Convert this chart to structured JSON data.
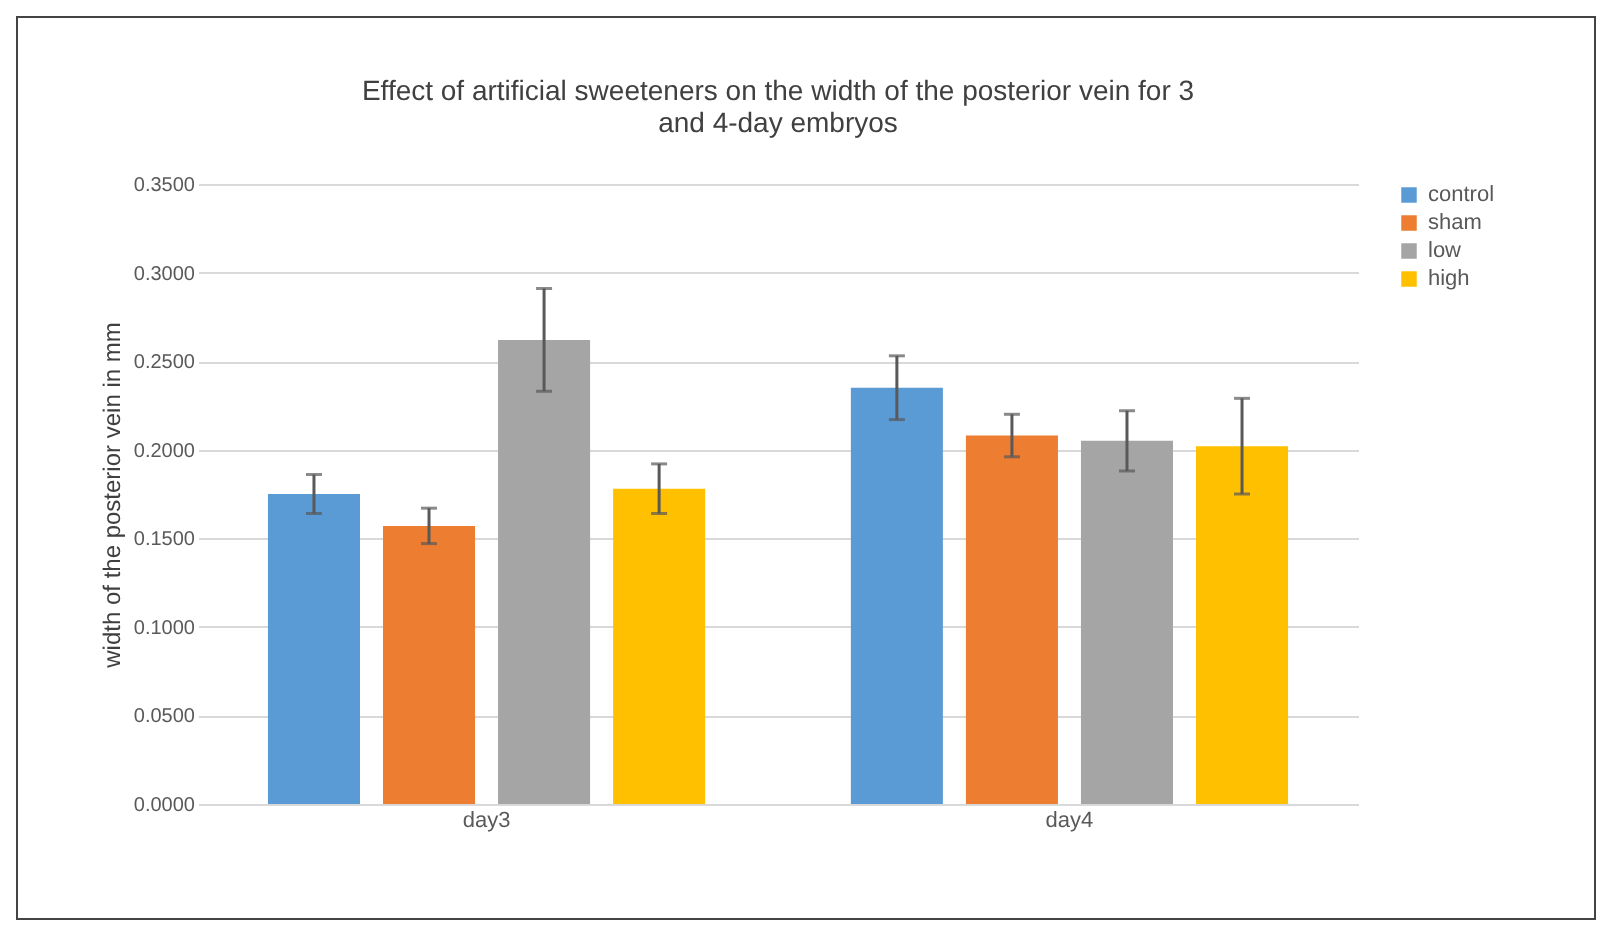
{
  "chart_data": {
    "type": "bar",
    "title": "Effect of artificial sweeteners on the width of the posterior vein for 3 and 4-day embryos",
    "ylabel": "width of the posterior vein in mm",
    "categories": [
      "day3",
      "day4"
    ],
    "series": [
      {
        "name": "control",
        "color": "#5b9bd5",
        "values": [
          0.175,
          0.235
        ],
        "errors": [
          0.011,
          0.018
        ]
      },
      {
        "name": "sham",
        "color": "#ed7d31",
        "values": [
          0.157,
          0.208
        ],
        "errors": [
          0.01,
          0.012
        ]
      },
      {
        "name": "low",
        "color": "#a5a5a5",
        "values": [
          0.262,
          0.205
        ],
        "errors": [
          0.029,
          0.017
        ]
      },
      {
        "name": "high",
        "color": "#ffc000",
        "values": [
          0.178,
          0.202
        ],
        "errors": [
          0.014,
          0.027
        ]
      }
    ],
    "ylim": [
      0,
      0.35
    ],
    "yticks": [
      {
        "value": 0,
        "label": "0.0000"
      },
      {
        "value": 0.05,
        "label": "0.0500"
      },
      {
        "value": 0.1,
        "label": "0.1000"
      },
      {
        "value": 0.15,
        "label": "0.1500"
      },
      {
        "value": 0.2,
        "label": "0.2000"
      },
      {
        "value": 0.25,
        "label": "0.2500"
      },
      {
        "value": 0.3,
        "label": "0.3000"
      },
      {
        "value": 0.35,
        "label": "0.3500"
      }
    ],
    "grid": "y",
    "legend": "right"
  }
}
